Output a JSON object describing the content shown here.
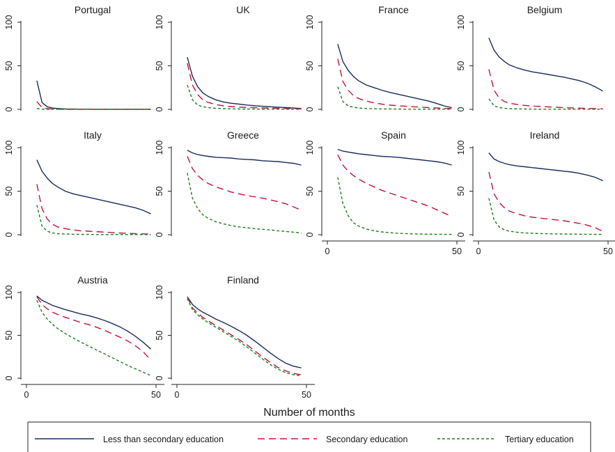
{
  "chart_data": {
    "type": "line",
    "xlabel": "Number of months",
    "xlim": [
      0,
      50
    ],
    "ylim": [
      0,
      100
    ],
    "x_ticks": [
      0,
      50
    ],
    "y_ticks": [
      0,
      50,
      100
    ],
    "x_ticks_labels": [
      "0",
      "50"
    ],
    "y_ticks_labels": [
      "0",
      "50",
      "100"
    ],
    "grid": false,
    "legend_position": "bottom",
    "legend": [
      {
        "name": "Less than secondary education",
        "color": "#1a2a5e",
        "dash": "solid"
      },
      {
        "name": "Secondary education",
        "color": "#c0143c",
        "dash": "long-dash"
      },
      {
        "name": "Tertiary education",
        "color": "#1e7d1e",
        "dash": "short-dash"
      }
    ],
    "x": [
      4,
      6,
      8,
      10,
      12,
      15,
      18,
      21,
      24,
      27,
      30,
      33,
      36,
      39,
      42,
      45,
      48
    ],
    "panels": [
      {
        "title": "Portugal",
        "series": [
          {
            "values": [
              33,
              8,
              3,
              1.5,
              1,
              0.5,
              0.3,
              0.2,
              0.2,
              0.1,
              0.1,
              0.1,
              0.1,
              0.1,
              0.1,
              0.1,
              0.1
            ]
          },
          {
            "values": [
              9,
              2,
              0.8,
              0.4,
              0.2,
              0.1,
              0.1,
              0.1,
              0.1,
              0.1,
              0.1,
              0.1,
              0.1,
              0.1,
              0.1,
              0.1,
              0.1
            ]
          },
          {
            "values": [
              1,
              0.3,
              0.1,
              0.1,
              0.1,
              0.1,
              0.1,
              0.1,
              0.1,
              0.1,
              0.1,
              0.1,
              0.1,
              0.1,
              0.1,
              0.1,
              0.1
            ]
          }
        ]
      },
      {
        "title": "UK",
        "series": [
          {
            "values": [
              60,
              38,
              26,
              19,
              15,
              11,
              8.5,
              7,
              6,
              5,
              4.2,
              3.5,
              3,
              2.5,
              2,
              1.5,
              1
            ]
          },
          {
            "values": [
              53,
              28,
              17,
              11,
              8,
              5.5,
              4,
              3.2,
              2.6,
              2.2,
              1.9,
              1.6,
              1.4,
              1.2,
              1,
              0.8,
              0.5
            ]
          },
          {
            "values": [
              28,
              11,
              5,
              3,
              2,
              1.2,
              0.8,
              0.6,
              0.4,
              0.3,
              0.3,
              0.2,
              0.2,
              0.2,
              0.2,
              0.2,
              0.2
            ]
          }
        ]
      },
      {
        "title": "France",
        "series": [
          {
            "values": [
              75,
              55,
              45,
              38,
              33,
              28,
              25,
              22,
              19.5,
              17.5,
              15.5,
              13.5,
              11.5,
              9.5,
              7,
              4,
              2
            ]
          },
          {
            "values": [
              58,
              32,
              22,
              16,
              12.5,
              9.5,
              7.5,
              6,
              5,
              4.2,
              3.5,
              3,
              2.5,
              2,
              1.6,
              1.2,
              1
            ]
          },
          {
            "values": [
              26,
              9,
              4,
              2.5,
              1.5,
              1,
              0.7,
              0.5,
              0.4,
              0.3,
              0.2,
              0.2,
              0.2,
              0.2,
              0.2,
              0.2,
              0.2
            ]
          }
        ]
      },
      {
        "title": "Belgium",
        "series": [
          {
            "values": [
              82,
              68,
              60,
              55,
              51,
              47.5,
              45,
              43,
              41.5,
              40,
              38.5,
              37,
              35,
              33,
              30,
              26,
              21
            ]
          },
          {
            "values": [
              46,
              22,
              13,
              9,
              7,
              5.5,
              4.5,
              3.8,
              3.3,
              2.8,
              2.4,
              2,
              1.7,
              1.4,
              1.1,
              0.8,
              0.6
            ]
          },
          {
            "values": [
              12,
              4,
              2,
              1.2,
              0.8,
              0.5,
              0.4,
              0.3,
              0.2,
              0.2,
              0.2,
              0.2,
              0.2,
              0.2,
              0.2,
              0.2,
              0.2
            ]
          }
        ]
      },
      {
        "title": "Italy",
        "series": [
          {
            "values": [
              86,
              73,
              65,
              59,
              55,
              50,
              47,
              45,
              43,
              41,
              39,
              37,
              35,
              33,
              31,
              28,
              24
            ]
          },
          {
            "values": [
              58,
              30,
              18,
              12,
              9,
              7,
              5.5,
              4.5,
              4,
              3.5,
              3,
              2.5,
              2,
              1.6,
              1.2,
              1,
              0.8
            ]
          },
          {
            "values": [
              34,
              10,
              4,
              2,
              1.2,
              0.8,
              0.5,
              0.4,
              0.3,
              0.2,
              0.2,
              0.2,
              0.2,
              0.2,
              0.2,
              0.2,
              0.2
            ]
          }
        ]
      },
      {
        "title": "Greece",
        "series": [
          {
            "values": [
              97,
              94,
              92,
              91,
              90,
              89,
              88.5,
              88,
              87,
              86.5,
              86,
              85,
              84.5,
              84,
              83,
              82,
              80
            ]
          },
          {
            "values": [
              90,
              76,
              68,
              63,
              59,
              55,
              52,
              49,
              47,
              45,
              43.5,
              42,
              40,
              38,
              35.5,
              32,
              28
            ]
          },
          {
            "values": [
              71,
              42,
              30,
              23,
              19,
              15,
              12.5,
              10.5,
              9,
              8,
              7,
              6.2,
              5.5,
              4.5,
              3.8,
              3,
              2
            ]
          }
        ]
      },
      {
        "title": "Spain",
        "series": [
          {
            "values": [
              98,
              96,
              95,
              94,
              93,
              92,
              91,
              90,
              89.5,
              89,
              88,
              87,
              86,
              85,
              84,
              82.5,
              80
            ]
          },
          {
            "values": [
              92,
              80,
              73,
              68,
              64,
              59,
              55,
              51,
              48,
              45,
              42,
              39,
              36,
              33,
              29,
              25,
              21
            ]
          },
          {
            "values": [
              66,
              36,
              22,
              14,
              10,
              6.5,
              4.5,
              3.2,
              2.3,
              1.7,
              1.3,
              1,
              0.8,
              0.6,
              0.5,
              0.4,
              0.3
            ]
          }
        ]
      },
      {
        "title": "Ireland",
        "series": [
          {
            "values": [
              94,
              87,
              84,
              82,
              80.5,
              79,
              78,
              77,
              76,
              75,
              74,
              73,
              72,
              70.5,
              68.5,
              66,
              62
            ]
          },
          {
            "values": [
              72,
              47,
              37,
              31,
              27,
              24,
              21.5,
              20,
              19,
              18,
              17,
              16,
              14.5,
              13,
              11,
              8,
              4
            ]
          },
          {
            "values": [
              42,
              17,
              9,
              5.5,
              4,
              2.8,
              2,
              1.6,
              1.3,
              1.1,
              0.9,
              0.8,
              0.7,
              0.6,
              0.5,
              0.4,
              0.3
            ]
          }
        ]
      },
      {
        "title": "Austria",
        "series": [
          {
            "values": [
              96,
              91,
              88,
              85,
              83,
              80,
              77.5,
              75,
              73,
              70.5,
              67.5,
              64,
              60,
              55,
              49,
              42,
              34
            ]
          },
          {
            "values": [
              95,
              86,
              81,
              77,
              74.5,
              71,
              68,
              65,
              62.5,
              59.5,
              56,
              52,
              48,
              43.5,
              38,
              31,
              21
            ]
          },
          {
            "values": [
              91,
              77,
              69,
              63,
              58,
              52,
              47,
              42,
              37.5,
              33,
              28.5,
              24,
              19.5,
              15,
              11,
              7,
              3
            ]
          }
        ]
      },
      {
        "title": "Finland",
        "series": [
          {
            "values": [
              95,
              86,
              81,
              77,
              74,
              69,
              65,
              60.5,
              55.5,
              50,
              43.5,
              36.5,
              29.5,
              23,
              17.5,
              14,
              12
            ]
          },
          {
            "values": [
              95,
              82,
              76,
              71,
              67,
              61.5,
              56,
              50.5,
              45,
              39,
              32,
              25,
              18.5,
              12.5,
              8.5,
              5.5,
              4
            ]
          },
          {
            "values": [
              93,
              80,
              74,
              69,
              65,
              59.5,
              54,
              48.5,
              43,
              36.5,
              29.5,
              22.5,
              16,
              10.5,
              6.5,
              4,
              2.5
            ]
          }
        ]
      }
    ]
  }
}
